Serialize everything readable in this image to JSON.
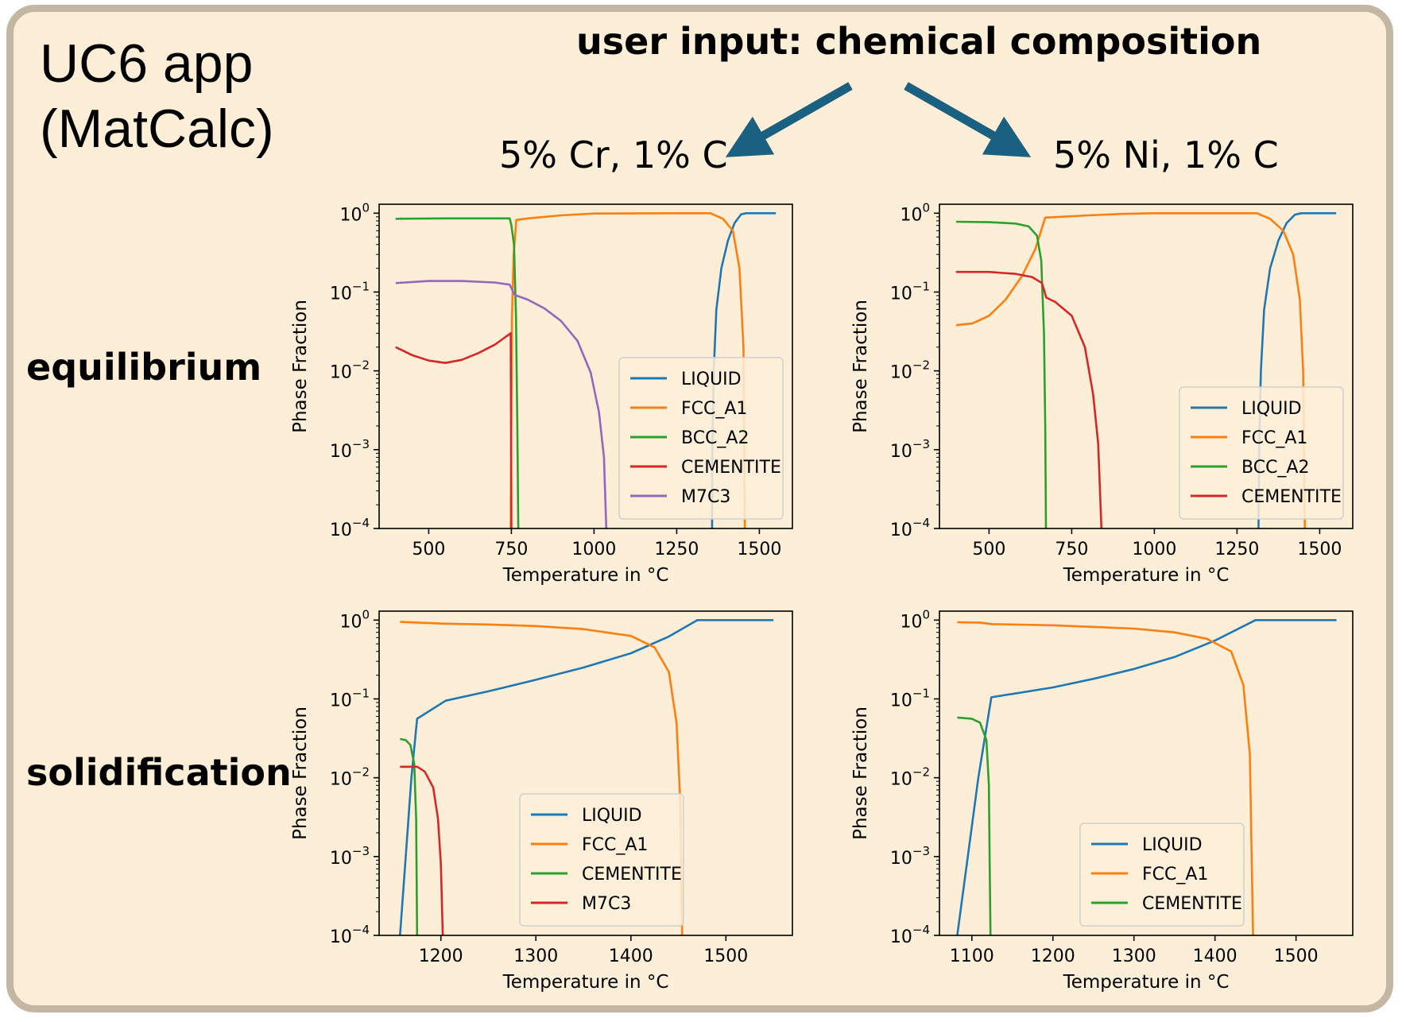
{
  "app_title_line1": "UC6 app",
  "app_title_line2": "(MatCalc)",
  "user_input_label": "user input: chemical composition",
  "compositions": [
    "5% Cr, 1% C",
    "5% Ni, 1% C"
  ],
  "row_labels": [
    "equilibrium",
    "solidification"
  ],
  "colors": {
    "LIQUID": "#1f77b4",
    "FCC_A1": "#ff7f0e",
    "BCC_A2": "#2ca02c",
    "CEMENTITE": "#d62728",
    "M7C3": "#9467bd",
    "arrow": "#1a6080",
    "frame": "#c3b7a3",
    "background": "#fdeed8"
  },
  "chart_data": [
    {
      "type": "line",
      "composition": "5% Cr, 1% C",
      "calculation": "equilibrium",
      "xlabel": "Temperature in °C",
      "ylabel": "Phase Fraction",
      "yscale": "log",
      "xlim": [
        350,
        1600
      ],
      "ylim": [
        0.0001,
        1.3
      ],
      "xticks": [
        500,
        750,
        1000,
        1250,
        1500
      ],
      "yticks": [
        1,
        0.1,
        0.01,
        0.001,
        0.0001
      ],
      "ytick_labels": [
        [
          "10",
          "0"
        ],
        [
          "10",
          "−1"
        ],
        [
          "10",
          "−2"
        ],
        [
          "10",
          "−3"
        ],
        [
          "10",
          "−4"
        ]
      ],
      "legend": "lower-right",
      "series": [
        {
          "name": "LIQUID",
          "color": "#1f77b4",
          "points": [
            [
              1357,
              0.0001
            ],
            [
              1358,
              0.001
            ],
            [
              1362,
              0.01
            ],
            [
              1370,
              0.06
            ],
            [
              1385,
              0.2
            ],
            [
              1405,
              0.45
            ],
            [
              1425,
              0.75
            ],
            [
              1445,
              0.97
            ],
            [
              1460,
              1
            ],
            [
              1550,
              1
            ]
          ]
        },
        {
          "name": "FCC_A1",
          "color": "#ff7f0e",
          "points": [
            [
              748,
              0.0001
            ],
            [
              750,
              0.003
            ],
            [
              752,
              0.05
            ],
            [
              757,
              0.3
            ],
            [
              765,
              0.82
            ],
            [
              800,
              0.86
            ],
            [
              900,
              0.94
            ],
            [
              1000,
              0.99
            ],
            [
              1250,
              1
            ],
            [
              1352,
              1
            ],
            [
              1390,
              0.85
            ],
            [
              1420,
              0.6
            ],
            [
              1440,
              0.2
            ],
            [
              1452,
              0.02
            ],
            [
              1456,
              0.0001
            ]
          ]
        },
        {
          "name": "BCC_A2",
          "color": "#2ca02c",
          "points": [
            [
              400,
              0.85
            ],
            [
              550,
              0.86
            ],
            [
              700,
              0.86
            ],
            [
              745,
              0.86
            ],
            [
              750,
              0.7
            ],
            [
              758,
              0.4
            ],
            [
              764,
              0.05
            ],
            [
              768,
              0.002
            ],
            [
              771,
              0.0001
            ]
          ]
        },
        {
          "name": "CEMENTITE",
          "color": "#d62728",
          "points": [
            [
              400,
              0.02
            ],
            [
              450,
              0.0158
            ],
            [
              500,
              0.0135
            ],
            [
              550,
              0.0126
            ],
            [
              600,
              0.0138
            ],
            [
              650,
              0.0168
            ],
            [
              700,
              0.0215
            ],
            [
              748,
              0.03
            ],
            [
              750,
              0.0001
            ]
          ]
        },
        {
          "name": "M7C3",
          "color": "#9467bd",
          "points": [
            [
              400,
              0.13
            ],
            [
              500,
              0.138
            ],
            [
              600,
              0.138
            ],
            [
              700,
              0.132
            ],
            [
              745,
              0.124
            ],
            [
              760,
              0.092
            ],
            [
              800,
              0.08
            ],
            [
              850,
              0.062
            ],
            [
              900,
              0.043
            ],
            [
              950,
              0.024
            ],
            [
              990,
              0.0095
            ],
            [
              1015,
              0.003
            ],
            [
              1030,
              0.0008
            ],
            [
              1037,
              0.0001
            ]
          ]
        }
      ]
    },
    {
      "type": "line",
      "composition": "5% Ni, 1% C",
      "calculation": "equilibrium",
      "xlabel": "Temperature in °C",
      "ylabel": "Phase Fraction",
      "yscale": "log",
      "xlim": [
        350,
        1600
      ],
      "ylim": [
        0.0001,
        1.3
      ],
      "xticks": [
        500,
        750,
        1000,
        1250,
        1500
      ],
      "yticks": [
        1,
        0.1,
        0.01,
        0.001,
        0.0001
      ],
      "ytick_labels": [
        [
          "10",
          "0"
        ],
        [
          "10",
          "−1"
        ],
        [
          "10",
          "−2"
        ],
        [
          "10",
          "−3"
        ],
        [
          "10",
          "−4"
        ]
      ],
      "legend": "lower-right",
      "series": [
        {
          "name": "LIQUID",
          "color": "#1f77b4",
          "points": [
            [
              1315,
              0.0001
            ],
            [
              1317,
              0.001
            ],
            [
              1322,
              0.01
            ],
            [
              1332,
              0.06
            ],
            [
              1350,
              0.2
            ],
            [
              1375,
              0.45
            ],
            [
              1400,
              0.75
            ],
            [
              1425,
              0.96
            ],
            [
              1445,
              1
            ],
            [
              1550,
              1
            ]
          ]
        },
        {
          "name": "FCC_A1",
          "color": "#ff7f0e",
          "points": [
            [
              400,
              0.038
            ],
            [
              450,
              0.04
            ],
            [
              500,
              0.05
            ],
            [
              550,
              0.08
            ],
            [
              600,
              0.16
            ],
            [
              640,
              0.35
            ],
            [
              670,
              0.88
            ],
            [
              800,
              0.94
            ],
            [
              900,
              0.98
            ],
            [
              1000,
              1
            ],
            [
              1310,
              1
            ],
            [
              1350,
              0.85
            ],
            [
              1390,
              0.6
            ],
            [
              1420,
              0.3
            ],
            [
              1440,
              0.08
            ],
            [
              1450,
              0.01
            ],
            [
              1455,
              0.0001
            ]
          ]
        },
        {
          "name": "BCC_A2",
          "color": "#2ca02c",
          "points": [
            [
              400,
              0.78
            ],
            [
              500,
              0.77
            ],
            [
              580,
              0.74
            ],
            [
              620,
              0.68
            ],
            [
              645,
              0.52
            ],
            [
              658,
              0.25
            ],
            [
              666,
              0.03
            ],
            [
              670,
              0.002
            ],
            [
              672,
              0.0001
            ]
          ]
        },
        {
          "name": "CEMENTITE",
          "color": "#d62728",
          "points": [
            [
              400,
              0.18
            ],
            [
              500,
              0.18
            ],
            [
              580,
              0.17
            ],
            [
              630,
              0.155
            ],
            [
              660,
              0.13
            ],
            [
              673,
              0.085
            ],
            [
              700,
              0.075
            ],
            [
              750,
              0.05
            ],
            [
              790,
              0.02
            ],
            [
              815,
              0.005
            ],
            [
              830,
              0.0012
            ],
            [
              840,
              0.0001
            ]
          ]
        }
      ]
    },
    {
      "type": "line",
      "composition": "5% Cr, 1% C",
      "calculation": "solidification",
      "xlabel": "Temperature in °C",
      "ylabel": "Phase Fraction",
      "yscale": "log",
      "xlim": [
        1135,
        1570
      ],
      "ylim": [
        0.0001,
        1.3
      ],
      "xticks": [
        1200,
        1300,
        1400,
        1500
      ],
      "yticks": [
        1,
        0.1,
        0.01,
        0.001,
        0.0001
      ],
      "ytick_labels": [
        [
          "10",
          "0"
        ],
        [
          "10",
          "−1"
        ],
        [
          "10",
          "−2"
        ],
        [
          "10",
          "−3"
        ],
        [
          "10",
          "−4"
        ]
      ],
      "legend": "lower-center",
      "series": [
        {
          "name": "LIQUID",
          "color": "#1f77b4",
          "points": [
            [
              1157,
              0.0001
            ],
            [
              1163,
              0.001
            ],
            [
              1169,
              0.01
            ],
            [
              1175,
              0.056
            ],
            [
              1205,
              0.095
            ],
            [
              1250,
              0.125
            ],
            [
              1300,
              0.175
            ],
            [
              1350,
              0.25
            ],
            [
              1400,
              0.38
            ],
            [
              1440,
              0.62
            ],
            [
              1470,
              1
            ],
            [
              1550,
              1
            ]
          ]
        },
        {
          "name": "FCC_A1",
          "color": "#ff7f0e",
          "points": [
            [
              1157,
              0.95
            ],
            [
              1175,
              0.93
            ],
            [
              1205,
              0.9
            ],
            [
              1250,
              0.88
            ],
            [
              1300,
              0.84
            ],
            [
              1350,
              0.77
            ],
            [
              1400,
              0.63
            ],
            [
              1425,
              0.45
            ],
            [
              1440,
              0.22
            ],
            [
              1448,
              0.05
            ],
            [
              1452,
              0.005
            ],
            [
              1454,
              0.0001
            ]
          ]
        },
        {
          "name": "CEMENTITE",
          "color": "#2ca02c",
          "points": [
            [
              1157,
              0.031
            ],
            [
              1163,
              0.03
            ],
            [
              1168,
              0.026
            ],
            [
              1172,
              0.015
            ],
            [
              1174,
              0.003
            ],
            [
              1175,
              0.0001
            ]
          ]
        },
        {
          "name": "M7C3",
          "color": "#d62728",
          "points": [
            [
              1157,
              0.0138
            ],
            [
              1175,
              0.0138
            ],
            [
              1183,
              0.012
            ],
            [
              1192,
              0.0075
            ],
            [
              1197,
              0.003
            ],
            [
              1200,
              0.0008
            ],
            [
              1202,
              0.0001
            ]
          ]
        }
      ]
    },
    {
      "type": "line",
      "composition": "5% Ni, 1% C",
      "calculation": "solidification",
      "xlabel": "Temperature in °C",
      "ylabel": "Phase Fraction",
      "yscale": "log",
      "xlim": [
        1060,
        1570
      ],
      "ylim": [
        0.0001,
        1.3
      ],
      "xticks": [
        1100,
        1200,
        1300,
        1400,
        1500
      ],
      "yticks": [
        1,
        0.1,
        0.01,
        0.001,
        0.0001
      ],
      "ytick_labels": [
        [
          "10",
          "0"
        ],
        [
          "10",
          "−1"
        ],
        [
          "10",
          "−2"
        ],
        [
          "10",
          "−3"
        ],
        [
          "10",
          "−4"
        ]
      ],
      "legend": "lower-center",
      "series": [
        {
          "name": "LIQUID",
          "color": "#1f77b4",
          "points": [
            [
              1082,
              0.0001
            ],
            [
              1095,
              0.001
            ],
            [
              1108,
              0.01
            ],
            [
              1124,
              0.105
            ],
            [
              1200,
              0.14
            ],
            [
              1250,
              0.18
            ],
            [
              1300,
              0.24
            ],
            [
              1350,
              0.34
            ],
            [
              1400,
              0.55
            ],
            [
              1450,
              1
            ],
            [
              1550,
              1
            ]
          ]
        },
        {
          "name": "FCC_A1",
          "color": "#ff7f0e",
          "points": [
            [
              1082,
              0.94
            ],
            [
              1110,
              0.93
            ],
            [
              1124,
              0.89
            ],
            [
              1200,
              0.86
            ],
            [
              1300,
              0.78
            ],
            [
              1350,
              0.7
            ],
            [
              1390,
              0.58
            ],
            [
              1420,
              0.4
            ],
            [
              1435,
              0.15
            ],
            [
              1443,
              0.02
            ],
            [
              1447,
              0.0001
            ]
          ]
        },
        {
          "name": "CEMENTITE",
          "color": "#2ca02c",
          "points": [
            [
              1082,
              0.058
            ],
            [
              1100,
              0.056
            ],
            [
              1110,
              0.05
            ],
            [
              1118,
              0.03
            ],
            [
              1121,
              0.008
            ],
            [
              1122,
              0.0008
            ],
            [
              1123,
              0.0001
            ]
          ]
        }
      ]
    }
  ]
}
